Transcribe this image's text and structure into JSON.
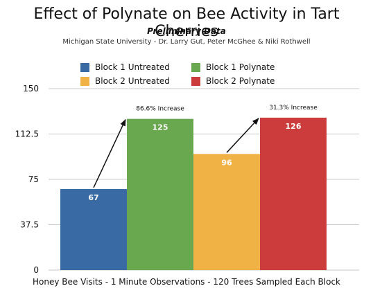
{
  "chart_data": {
    "type": "bar",
    "title": "Effect of Polynate on Bee Activity in Tart Cherries",
    "subtitle": "Preliminary Data",
    "credit": "Michigan State University - Dr. Larry Gut, Peter McGhee & Niki Rothwell",
    "xlabel": "Honey Bee Visits - 1 Minute Observations - 120 Trees Sampled Each Block",
    "ylabel": "",
    "ylim": [
      0,
      150
    ],
    "yticks": [
      "0",
      "37.5",
      "75",
      "112.5",
      "150"
    ],
    "grid": true,
    "legend_position": "top",
    "series": [
      {
        "name": "Block 1 Untreated",
        "value": 67,
        "label": "67",
        "color": "#3a6aa3"
      },
      {
        "name": "Block 1 Polynate",
        "value": 125,
        "label": "125",
        "color": "#6aa84f"
      },
      {
        "name": "Block 2 Untreated",
        "value": 96,
        "label": "96",
        "color": "#f0b244"
      },
      {
        "name": "Block 2 Polynate",
        "value": 126,
        "label": "126",
        "color": "#cc3c3c"
      }
    ],
    "annotations": [
      {
        "text": "86.6% Increase",
        "from": 0,
        "to": 1
      },
      {
        "text": "31.3% Increase",
        "from": 2,
        "to": 3
      }
    ]
  }
}
